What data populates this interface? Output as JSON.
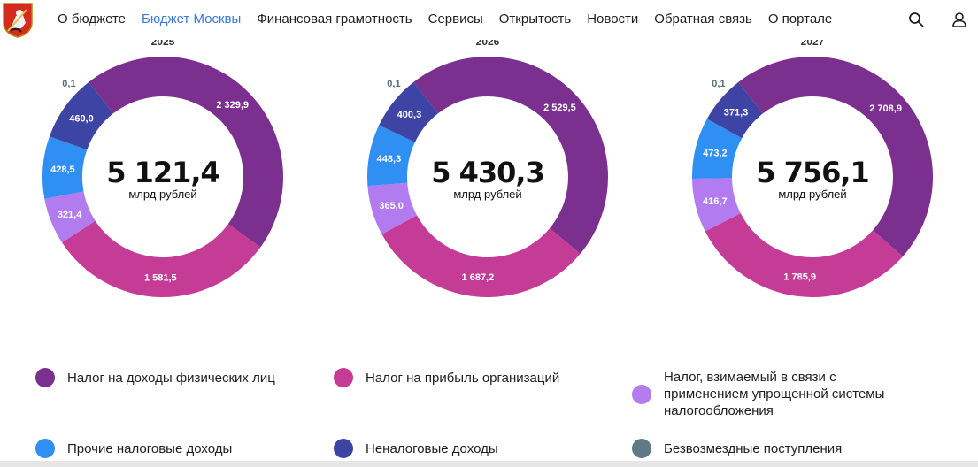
{
  "header": {
    "nav": [
      {
        "label": "О бюджете",
        "active": false
      },
      {
        "label": "Бюджет Москвы",
        "active": true
      },
      {
        "label": "Финансовая грамотность",
        "active": false
      },
      {
        "label": "Сервисы",
        "active": false
      },
      {
        "label": "Открытость",
        "active": false
      },
      {
        "label": "Новости",
        "active": false
      },
      {
        "label": "Обратная связь",
        "active": false
      },
      {
        "label": "О портале",
        "active": false
      }
    ],
    "icons": [
      "moscow-coat-of-arms-logo",
      "search-icon",
      "user-icon"
    ]
  },
  "colors": {
    "ndfl": "#7b2f8e",
    "profit": "#c43c96",
    "usn": "#b27cf0",
    "other_tax": "#2f8ff2",
    "nontax": "#3d44a3",
    "gratuitous": "#5f7a86",
    "active_link": "#3b79d6"
  },
  "chart_data": [
    {
      "type": "pie",
      "title": "2025",
      "total": "5 121,4",
      "unit": "млрд рублей",
      "slices": [
        {
          "key": "ndfl",
          "value": 2329.9,
          "label": "2 329,9"
        },
        {
          "key": "profit",
          "value": 1581.5,
          "label": "1 581,5"
        },
        {
          "key": "usn",
          "value": 321.4,
          "label": "321,4"
        },
        {
          "key": "other_tax",
          "value": 428.5,
          "label": "428,5"
        },
        {
          "key": "nontax",
          "value": 460.0,
          "label": "460,0"
        },
        {
          "key": "gratuitous",
          "value": 0.1,
          "label": "0,1"
        }
      ]
    },
    {
      "type": "pie",
      "title": "2026",
      "total": "5 430,3",
      "unit": "млрд рублей",
      "slices": [
        {
          "key": "ndfl",
          "value": 2529.5,
          "label": "2 529,5"
        },
        {
          "key": "profit",
          "value": 1687.2,
          "label": "1 687,2"
        },
        {
          "key": "usn",
          "value": 365.0,
          "label": "365,0"
        },
        {
          "key": "other_tax",
          "value": 448.3,
          "label": "448,3"
        },
        {
          "key": "nontax",
          "value": 400.3,
          "label": "400,3"
        },
        {
          "key": "gratuitous",
          "value": 0.1,
          "label": "0,1"
        }
      ]
    },
    {
      "type": "pie",
      "title": "2027",
      "total": "5 756,1",
      "unit": "млрд рублей",
      "slices": [
        {
          "key": "ndfl",
          "value": 2708.9,
          "label": "2 708,9"
        },
        {
          "key": "profit",
          "value": 1785.9,
          "label": "1 785,9"
        },
        {
          "key": "usn",
          "value": 416.7,
          "label": "416,7"
        },
        {
          "key": "other_tax",
          "value": 473.2,
          "label": "473,2"
        },
        {
          "key": "nontax",
          "value": 371.3,
          "label": "371,3"
        },
        {
          "key": "gratuitous",
          "value": 0.1,
          "label": "0,1"
        }
      ]
    }
  ],
  "legend": [
    {
      "key": "ndfl",
      "label": "Налог на доходы физических лиц"
    },
    {
      "key": "profit",
      "label": "Налог на прибыль организаций"
    },
    {
      "key": "usn",
      "label": "Налог, взимаемый в связи с применением упрощенной системы налогообложения"
    },
    {
      "key": "other_tax",
      "label": "Прочие налоговые доходы"
    },
    {
      "key": "nontax",
      "label": "Неналоговые доходы"
    },
    {
      "key": "gratuitous",
      "label": "Безвозмездные поступления"
    }
  ]
}
